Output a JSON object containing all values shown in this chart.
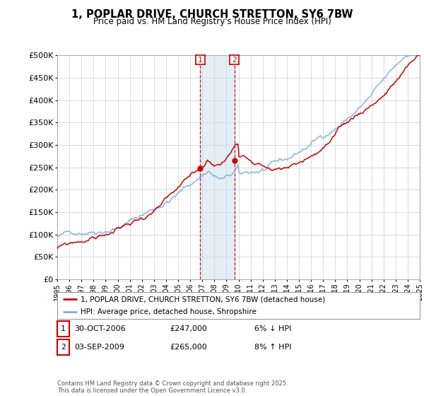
{
  "title": "1, POPLAR DRIVE, CHURCH STRETTON, SY6 7BW",
  "subtitle": "Price paid vs. HM Land Registry's House Price Index (HPI)",
  "ylabel_ticks": [
    "£0",
    "£50K",
    "£100K",
    "£150K",
    "£200K",
    "£250K",
    "£300K",
    "£350K",
    "£400K",
    "£450K",
    "£500K"
  ],
  "ytick_values": [
    0,
    50000,
    100000,
    150000,
    200000,
    250000,
    300000,
    350000,
    400000,
    450000,
    500000
  ],
  "x_start_year": 1995,
  "x_end_year": 2025,
  "red_line_color": "#cc0000",
  "blue_line_color": "#7aafd4",
  "transaction1_x": 2006.83,
  "transaction2_x": 2009.67,
  "transaction1_price": 247000,
  "transaction2_price": 265000,
  "vline_color": "#cc0000",
  "highlight_color": "#c8dff0",
  "highlight_alpha": 0.5,
  "legend_label_red": "1, POPLAR DRIVE, CHURCH STRETTON, SY6 7BW (detached house)",
  "legend_label_blue": "HPI: Average price, detached house, Shropshire",
  "table_row1": [
    "1",
    "30-OCT-2006",
    "£247,000",
    "6% ↓ HPI"
  ],
  "table_row2": [
    "2",
    "03-SEP-2009",
    "£265,000",
    "8% ↑ HPI"
  ],
  "footnote": "Contains HM Land Registry data © Crown copyright and database right 2025.\nThis data is licensed under the Open Government Licence v3.0.",
  "background_color": "#ffffff",
  "grid_color": "#cccccc"
}
